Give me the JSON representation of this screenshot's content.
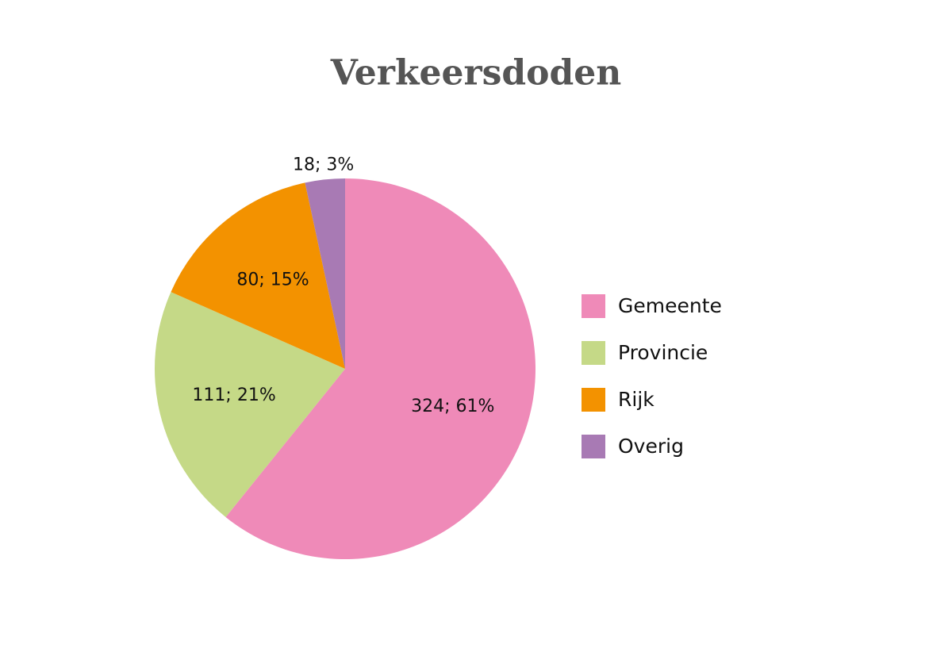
{
  "chart_data": {
    "type": "pie",
    "title": "Verkeersdoden",
    "categories": [
      "Gemeente",
      "Provincie",
      "Rijk",
      "Overig"
    ],
    "values": [
      324,
      111,
      80,
      18
    ],
    "value_labels": [
      "324; 61%",
      "111; 21%",
      "80; 15%",
      "18; 3%"
    ],
    "colors": [
      "#ef8ab8",
      "#c5d987",
      "#f39200",
      "#a87ab4"
    ],
    "legend": "right"
  }
}
